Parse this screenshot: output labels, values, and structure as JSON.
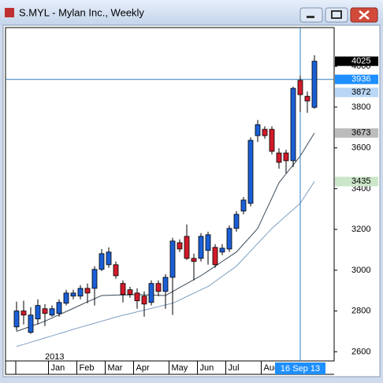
{
  "chart_data": {
    "type": "candlestick",
    "title": "S.MYL - Mylan Inc., Weekly",
    "annotation": "2013",
    "up_color": "#1a5fd6",
    "down_color": "#d21a2a",
    "categories": [
      null,
      null,
      null,
      null,
      "Jan",
      null,
      null,
      null,
      "Feb",
      null,
      null,
      null,
      "Mar",
      null,
      null,
      null,
      "Apr",
      null,
      null,
      null,
      null,
      "May",
      null,
      null,
      null,
      "Jun",
      null,
      null,
      null,
      "Jul",
      null,
      null,
      null,
      null,
      "Aug",
      null,
      null,
      null,
      null,
      null,
      null,
      null,
      null
    ],
    "open": [
      2722,
      2800,
      2695,
      2761,
      2811,
      2780,
      2788,
      2838,
      2873,
      2873,
      2911,
      2911,
      3004,
      3027,
      3027,
      2935,
      2904,
      2888,
      2873,
      2842,
      2935,
      2896,
      2965,
      3135,
      3166,
      3058,
      3058,
      3097,
      3112,
      3089,
      3104,
      3205,
      3290,
      3328,
      3660,
      3691,
      3691,
      3575,
      3575,
      3537,
      3931,
      3853,
      3799
    ],
    "high": [
      2846,
      2850,
      2819,
      2857,
      2834,
      2827,
      2857,
      2904,
      2904,
      2927,
      2935,
      3020,
      3104,
      3112,
      3043,
      2950,
      2919,
      2911,
      2896,
      2950,
      2950,
      2981,
      3159,
      3151,
      3224,
      3081,
      3182,
      3189,
      3128,
      3128,
      3220,
      3290,
      3359,
      3652,
      3737,
      3706,
      3706,
      3598,
      3591,
      3900,
      3954,
      3876,
      4054
    ],
    "low": [
      2703,
      2734,
      2688,
      2734,
      2726,
      2772,
      2772,
      2827,
      2857,
      2857,
      2838,
      2827,
      2996,
      3012,
      2958,
      2842,
      2865,
      2811,
      2772,
      2827,
      2873,
      2811,
      2780,
      3089,
      3050,
      2950,
      3043,
      3027,
      3012,
      3074,
      3089,
      3189,
      3274,
      3313,
      3629,
      3645,
      3568,
      3498,
      3475,
      3506,
      3776,
      3772,
      3792
    ],
    "close": [
      2800,
      2780,
      2780,
      2827,
      2788,
      2811,
      2842,
      2888,
      2888,
      2911,
      2888,
      3004,
      3081,
      3089,
      2973,
      2881,
      2881,
      2850,
      2834,
      2935,
      2896,
      2965,
      3143,
      3104,
      3058,
      3043,
      3166,
      3174,
      3027,
      3108,
      3205,
      3274,
      3344,
      3637,
      3714,
      3660,
      3583,
      3529,
      3537,
      3892,
      3861,
      3830,
      4025
    ],
    "series": [
      {
        "color": "#3a4a5a",
        "values": [
          2700,
          2712,
          2725,
          2737,
          2750,
          2766,
          2782,
          2797,
          2813,
          2829,
          2845,
          2860,
          2876,
          2877,
          2878,
          2878,
          2879,
          2880,
          2879,
          2878,
          2877,
          2876,
          2895,
          2915,
          2934,
          2954,
          2973,
          2996,
          3019,
          3043,
          3066,
          3089,
          3128,
          3166,
          3205,
          3280,
          3354,
          3429,
          3473,
          3516,
          3560,
          3617,
          3673
        ]
      },
      {
        "color": "#7f9fc0",
        "values": [
          2626,
          2636,
          2647,
          2657,
          2668,
          2678,
          2689,
          2699,
          2710,
          2720,
          2730,
          2740,
          2750,
          2760,
          2770,
          2779,
          2787,
          2796,
          2804,
          2813,
          2821,
          2830,
          2838,
          2854,
          2871,
          2887,
          2904,
          2920,
          2945,
          2970,
          2995,
          3020,
          3057,
          3094,
          3131,
          3168,
          3205,
          3236,
          3267,
          3297,
          3328,
          3382,
          3435
        ]
      }
    ],
    "ylim": [
      2555,
      4190
    ],
    "yticks": [
      2600,
      2800,
      3000,
      3200,
      3400,
      3600,
      3800,
      4000
    ],
    "crosshair": {
      "index": 40,
      "price": 3936,
      "date_label": "16 Sep 13",
      "color": "#2b7fc0"
    },
    "price_markers": [
      {
        "value": 4025,
        "bg": "#000000",
        "fg": "#ffffff"
      },
      {
        "value": 3936,
        "bg": "#1e8fff",
        "fg": "#ffffff"
      },
      {
        "value": 3872,
        "bg": "#b9d6f6",
        "fg": "#000000"
      },
      {
        "value": 3673,
        "bg": "#bcbcbc",
        "fg": "#000000"
      },
      {
        "value": 3435,
        "bg": "#cbe6c8",
        "fg": "#000000"
      }
    ]
  }
}
